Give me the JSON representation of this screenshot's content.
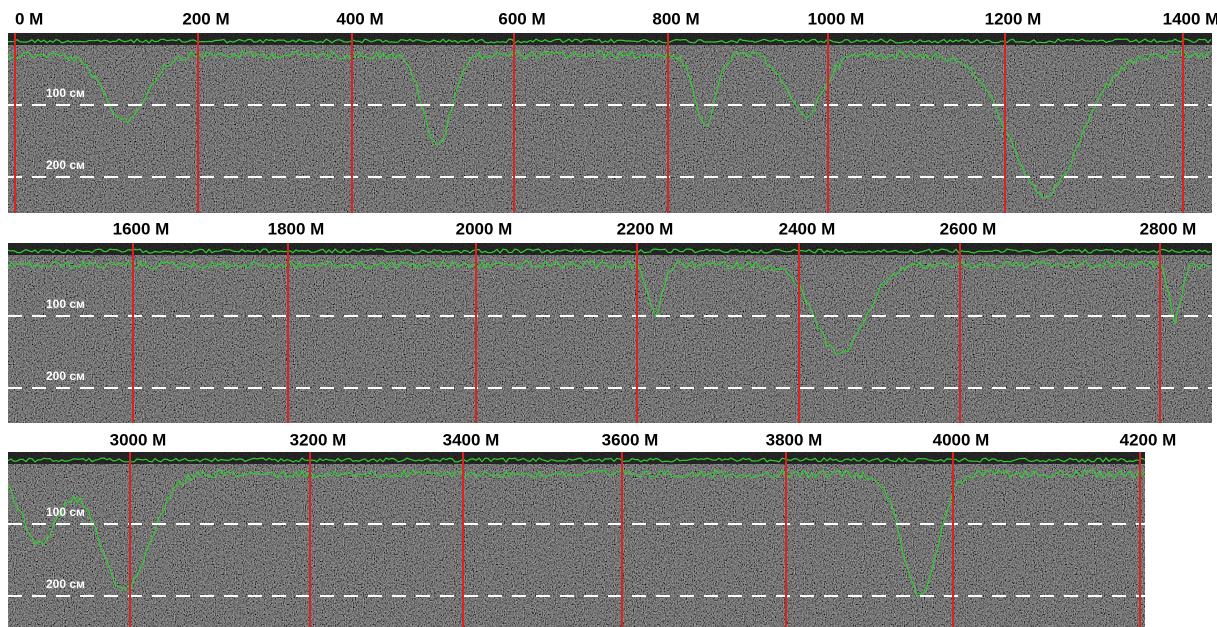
{
  "panels": [
    {
      "markers": [
        "0 M",
        "200 M",
        "400 M",
        "600 M",
        "800 M",
        "1000 M",
        "1200 M",
        "1400 M"
      ],
      "depth_labels": [
        "100 см",
        "200 см"
      ]
    },
    {
      "markers": [
        "1600 M",
        "1800 M",
        "2000 M",
        "2200 M",
        "2400 M",
        "2600 M",
        "2800 M"
      ],
      "depth_labels": [
        "100 см",
        "200 см"
      ]
    },
    {
      "markers": [
        "3000 M",
        "3200 M",
        "3400 M",
        "3600 M",
        "3800 M",
        "4000 M",
        "4200 M"
      ],
      "depth_labels": [
        "100 см",
        "200 см"
      ]
    }
  ]
}
